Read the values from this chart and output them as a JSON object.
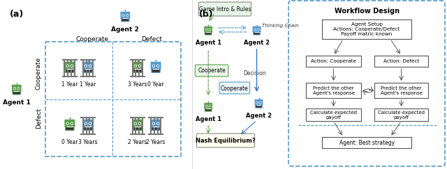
{
  "fig_width": 6.4,
  "fig_height": 2.43,
  "dpi": 100,
  "bg_color": "#ffffff",
  "panel_a_label": "(a)",
  "panel_b_label": "(b)",
  "agent2_label": "Agent 2",
  "agent1_label": "Agent 1",
  "cooperate_label": "Cooperate",
  "defect_label": "Defect",
  "cell_labels": [
    [
      "1 Year",
      "1 Year"
    ],
    [
      "3 Years",
      "0 Year"
    ],
    [
      "0 Year",
      "3 Years"
    ],
    [
      "2 Years",
      "2 Years"
    ]
  ],
  "green_color": "#5a9e4a",
  "blue_color": "#5599cc",
  "dark_gray": "#555555",
  "light_gray": "#aaaaaa",
  "box_border": "#888888",
  "dashed_blue": "#5599cc",
  "dashed_green": "#5a9e4a",
  "arrow_blue": "#3377bb",
  "arrow_gray": "#555555",
  "workflow_title": "Workflow Design",
  "box1_text": "Agent Setup\nActions: Cooperate/Defect\nPayoff matric known",
  "box2_text": "Action: Cooperate",
  "box3_text": "Action: Defect",
  "box4_text": "Predict the other\nAgent's response",
  "box5_text": "Predict the other\nAgent's response",
  "box6_text": "Calculate expected\npayoff",
  "box7_text": "Calculate expected\npayoff",
  "box8_text": "Agent: Best strategy",
  "flow_left_label": "Cooperate",
  "flow_cooperate_label": "Cooperate",
  "game_intro_label": "Game Intro & Rules",
  "thinking_chain_label": "Thinking Chain",
  "decision_label": "Decision",
  "nash_label": "Nash Equilibrium?",
  "agent1_flow_label": "Agent 1",
  "agent2_flow_label": "Agent 2",
  "agent1_bottom_label": "Agent 1",
  "agent2_bottom_label": "Agent 2"
}
